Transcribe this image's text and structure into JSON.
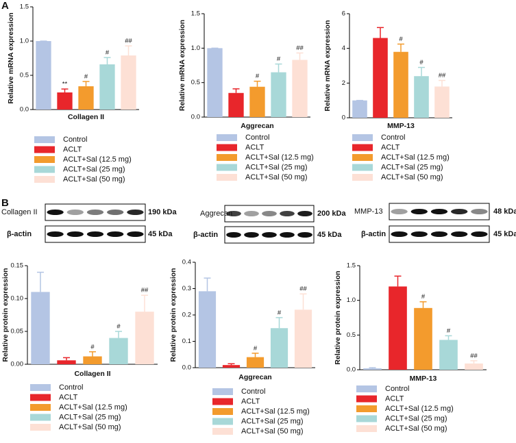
{
  "panels": [
    "A",
    "B"
  ],
  "blots": [
    {
      "label": "Collagen II",
      "kda": "190 kDa",
      "actin": "β-actin",
      "actin_kda": "45 kDa"
    },
    {
      "label": "Aggrecan",
      "kda": "200 kDa",
      "actin": "β-actin",
      "actin_kda": "45 kDa"
    },
    {
      "label": "MMP-13",
      "kda": "48 kDa",
      "actin": "β-actin",
      "actin_kda": "45 kDa"
    }
  ],
  "chart_data": [
    {
      "type": "bar",
      "ylabel": "Relative mRNA expression",
      "xlabel": "Collagen II",
      "categories": [
        "Control",
        "ACLT",
        "ACLT+Sal (12.5 mg)",
        "ACLT+Sal (25 mg)",
        "ACLT+Sal (50 mg)"
      ],
      "colors": [
        "#b4c5e4",
        "#e8262b",
        "#f39b2d",
        "#a8d8d8",
        "#fde0d5"
      ],
      "values": [
        1.0,
        0.25,
        0.34,
        0.66,
        0.79
      ],
      "errors": [
        0,
        0.05,
        0.07,
        0.1,
        0.14
      ],
      "annotations": [
        null,
        "**",
        "#",
        "#",
        "##"
      ],
      "ylim": [
        0,
        1.5
      ],
      "yticks": [
        {
          "value": 0,
          "label": "0.0"
        },
        0.5,
        {
          "value": 1,
          "label": "1.0"
        },
        1.5
      ]
    },
    {
      "type": "bar",
      "ylabel": "Relative mRNA expression",
      "xlabel": "Aggrecan",
      "categories": [
        "Control",
        "ACLT",
        "ACLT+Sal (12.5 mg)",
        "ACLT+Sal (25 mg)",
        "ACLT+Sal (50 mg)"
      ],
      "colors": [
        "#b4c5e4",
        "#e8262b",
        "#f39b2d",
        "#a8d8d8",
        "#fde0d5"
      ],
      "values": [
        1.0,
        0.35,
        0.44,
        0.65,
        0.83
      ],
      "errors": [
        0,
        0.06,
        0.08,
        0.12,
        0.1
      ],
      "annotations": [
        null,
        null,
        "#",
        "#",
        "##"
      ],
      "ylim": [
        0,
        1.5
      ],
      "yticks": [
        {
          "value": 0,
          "label": "0.0"
        },
        0.5,
        {
          "value": 1,
          "label": "1.0"
        },
        1.5
      ]
    },
    {
      "type": "bar",
      "ylabel": "Relative mRNA expression",
      "xlabel": "MMP-13",
      "categories": [
        "Control",
        "ACLT",
        "ACLT+Sal (12.5 mg)",
        "ACLT+Sal (25 mg)",
        "ACLT+Sal (50 mg)"
      ],
      "colors": [
        "#b4c5e4",
        "#e8262b",
        "#f39b2d",
        "#a8d8d8",
        "#fde0d5"
      ],
      "values": [
        1.0,
        4.6,
        3.8,
        2.4,
        1.8
      ],
      "errors": [
        0,
        0.6,
        0.45,
        0.5,
        0.35
      ],
      "annotations": [
        null,
        null,
        "#",
        "#",
        "##"
      ],
      "ylim": [
        0,
        6
      ],
      "yticks": [
        0,
        2,
        4,
        6
      ]
    },
    {
      "type": "bar",
      "ylabel": "Relative protein expression",
      "xlabel": "Collagen II",
      "categories": [
        "Control",
        "ACLT",
        "ACLT+Sal (12.5 mg)",
        "ACLT+Sal (25 mg)",
        "ACLT+Sal (50 mg)"
      ],
      "colors": [
        "#b4c5e4",
        "#e8262b",
        "#f39b2d",
        "#a8d8d8",
        "#fde0d5"
      ],
      "values": [
        0.11,
        0.006,
        0.012,
        0.04,
        0.08
      ],
      "errors": [
        0.03,
        0.004,
        0.007,
        0.01,
        0.025
      ],
      "annotations": [
        null,
        null,
        "#",
        "#",
        "##"
      ],
      "ylim": [
        0,
        0.15
      ],
      "yticks": [
        {
          "value": 0,
          "label": "0.00"
        },
        0.05,
        {
          "value": 0.1,
          "label": "0.10"
        },
        0.15
      ]
    },
    {
      "type": "bar",
      "ylabel": "Relative protein expression",
      "xlabel": "Aggrecan",
      "categories": [
        "Control",
        "ACLT",
        "ACLT+Sal (12.5 mg)",
        "ACLT+Sal (25 mg)",
        "ACLT+Sal (50 mg)"
      ],
      "colors": [
        "#b4c5e4",
        "#e8262b",
        "#f39b2d",
        "#a8d8d8",
        "#fde0d5"
      ],
      "values": [
        0.29,
        0.01,
        0.04,
        0.15,
        0.22
      ],
      "errors": [
        0.05,
        0.005,
        0.015,
        0.04,
        0.06
      ],
      "annotations": [
        null,
        null,
        "#",
        "#",
        "##"
      ],
      "ylim": [
        0,
        0.4
      ],
      "yticks": [
        {
          "value": 0,
          "label": "0.0"
        },
        0.1,
        0.2,
        0.3,
        0.4
      ]
    },
    {
      "type": "bar",
      "ylabel": "Relative protein expression",
      "xlabel": "MMP-13",
      "categories": [
        "Control",
        "ACLT",
        "ACLT+Sal (12.5 mg)",
        "ACLT+Sal (25 mg)",
        "ACLT+Sal (50 mg)"
      ],
      "colors": [
        "#b4c5e4",
        "#e8262b",
        "#f39b2d",
        "#a8d8d8",
        "#fde0d5"
      ],
      "values": [
        0.02,
        1.2,
        0.89,
        0.43,
        0.09
      ],
      "errors": [
        0.01,
        0.15,
        0.09,
        0.06,
        0.04
      ],
      "annotations": [
        null,
        null,
        "#",
        "#",
        "##"
      ],
      "ylim": [
        0,
        1.5
      ],
      "yticks": [
        {
          "value": 0,
          "label": "0.0"
        },
        0.5,
        {
          "value": 1,
          "label": "1.0"
        },
        1.5
      ]
    }
  ]
}
